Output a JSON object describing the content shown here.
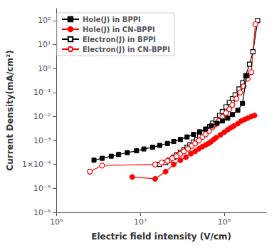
{
  "chart_data": {
    "type": "line",
    "xlabel": "Electric field intensity (V/cm)",
    "ylabel": "Current Density(mA/cm²)",
    "log": true,
    "grid": false,
    "legend": "upper left",
    "xlim": [
      1000000,
      316227766.01683795
    ],
    "ylim": [
      1e-06,
      316.22776601683796
    ],
    "xticks": [
      {
        "value": 1000000,
        "label": "10⁶"
      },
      {
        "value": 10000000,
        "label": "10⁷"
      },
      {
        "value": 100000000,
        "label": "10⁸"
      }
    ],
    "yticks": [
      {
        "value": 1e-06,
        "label": "10⁻⁶"
      },
      {
        "value": 1e-05,
        "label": "10⁻⁵"
      },
      {
        "value": 0.0001,
        "label": "1×10⁻⁴"
      },
      {
        "value": 0.001,
        "label": "10⁻³"
      },
      {
        "value": 0.01,
        "label": "10⁻²"
      },
      {
        "value": 0.1,
        "label": "10⁻¹"
      },
      {
        "value": 1,
        "label": "10⁰"
      },
      {
        "value": 10,
        "label": "10¹"
      },
      {
        "value": 100,
        "label": "10²"
      }
    ],
    "series": [
      {
        "name": "Hole(J) in BPPI",
        "color": "#000000",
        "marker": "square",
        "x": [
          2800000.0,
          3500000.0,
          4500000.0,
          5500000.0,
          7000000.0,
          9000000.0,
          11000000.0,
          14000000.0,
          17000000.0,
          21000000.0,
          25000000.0,
          30000000.0,
          36000000.0,
          43000000.0,
          51000000.0,
          60000000.0,
          70000000.0,
          82000000.0,
          95000000.0,
          110000000.0,
          125000000.0,
          145000000.0,
          165000000.0,
          185000000.0
        ],
        "values": [
          0.00015,
          0.00018,
          0.00022,
          0.00026,
          0.00031,
          0.00037,
          0.00044,
          0.00052,
          0.00062,
          0.00075,
          0.0009,
          0.0011,
          0.0014,
          0.0018,
          0.0023,
          0.003,
          0.004,
          0.0052,
          0.0065,
          0.0085,
          0.012,
          0.018,
          0.035,
          0.5
        ]
      },
      {
        "name": "Hole(J) in CN-BPPI",
        "color": "#ff0000",
        "marker": "circle",
        "x": [
          8000000.0,
          15000000.0,
          20000000.0,
          25000000.0,
          30000000.0,
          35000000.0,
          40000000.0,
          45000000.0,
          50000000.0,
          55000000.0,
          60000000.0,
          65000000.0,
          70000000.0,
          75000000.0,
          80000000.0,
          90000000.0,
          100000000.0,
          110000000.0,
          120000000.0,
          130000000.0,
          145000000.0,
          160000000.0,
          175000000.0,
          190000000.0,
          210000000.0,
          230000000.0
        ],
        "values": [
          3e-05,
          2.5e-05,
          5e-05,
          0.0001,
          0.00015,
          0.0002,
          0.00028,
          0.00035,
          0.00045,
          0.00055,
          0.00065,
          0.00075,
          0.0009,
          0.0011,
          0.0013,
          0.0017,
          0.0022,
          0.0028,
          0.0034,
          0.004,
          0.005,
          0.0065,
          0.0075,
          0.0085,
          0.01,
          0.011
        ]
      },
      {
        "name": "Electron(J) in BPPI",
        "color": "#000000",
        "marker": "open-square",
        "x": [
          17000000.0,
          20000000.0,
          22000000.0,
          25000000.0,
          27000000.0,
          30000000.0,
          33000000.0,
          36000000.0,
          39000000.0,
          43000000.0,
          47000000.0,
          51000000.0,
          56000000.0,
          61000000.0,
          67000000.0,
          73000000.0,
          80000000.0,
          88000000.0,
          95000000.0,
          105000000.0,
          115000000.0,
          125000000.0,
          135000000.0,
          150000000.0,
          165000000.0,
          180000000.0,
          200000000.0,
          220000000.0,
          250000000.0
        ],
        "values": [
          0.0001,
          0.00012,
          0.00015,
          0.0002,
          0.00025,
          0.00032,
          0.0004,
          0.00052,
          0.00065,
          0.00085,
          0.0011,
          0.0015,
          0.002,
          0.0028,
          0.0038,
          0.0052,
          0.0075,
          0.011,
          0.016,
          0.025,
          0.038,
          0.055,
          0.08,
          0.14,
          0.25,
          0.5,
          1.5,
          5.0,
          100.0
        ]
      },
      {
        "name": "Electron(J) in CN-BPPI",
        "color": "#ff0000",
        "marker": "open-circle",
        "x": [
          2500000.0,
          3500000.0,
          15000000.0,
          18000000.0,
          21000000.0,
          24000000.0,
          27000000.0,
          30000000.0,
          33000000.0,
          37000000.0,
          41000000.0,
          45000000.0,
          50000000.0,
          55000000.0,
          60000000.0,
          66000000.0,
          72000000.0,
          79000000.0,
          86000000.0,
          95000000.0,
          105000000.0,
          115000000.0,
          125000000.0,
          140000000.0,
          155000000.0,
          170000000.0,
          190000000.0,
          210000000.0,
          235000000.0
        ],
        "values": [
          5e-05,
          9e-05,
          0.0001,
          0.00012,
          0.00014,
          0.00018,
          0.00022,
          0.00028,
          0.00035,
          0.00045,
          0.0006,
          0.00075,
          0.001,
          0.0014,
          0.0018,
          0.0025,
          0.0035,
          0.0048,
          0.0065,
          0.0095,
          0.014,
          0.02,
          0.03,
          0.055,
          0.1,
          0.18,
          0.38,
          0.7,
          70.0
        ]
      }
    ]
  }
}
